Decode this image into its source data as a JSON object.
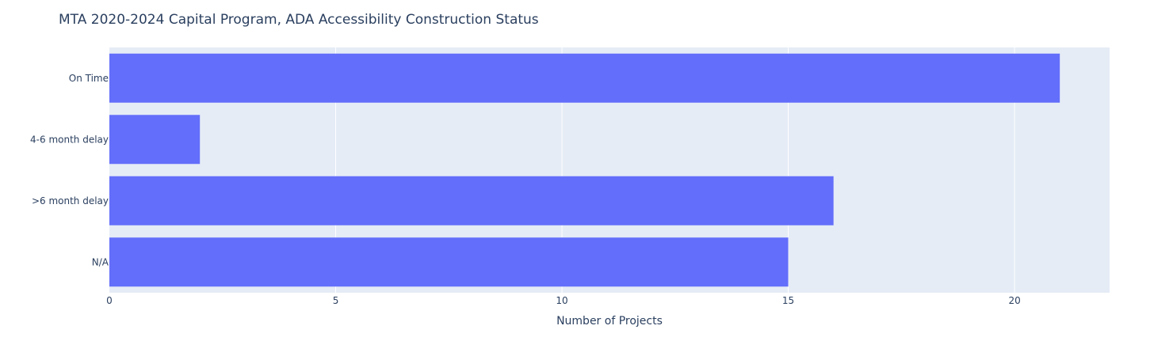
{
  "chart_data": {
    "type": "bar",
    "orientation": "horizontal",
    "title": "MTA 2020-2024 Capital Program, ADA Accessibility Construction Status",
    "xlabel": "Number of Projects",
    "ylabel": "",
    "categories": [
      "On Time",
      "4-6 month delay",
      ">6 month delay",
      "N/A"
    ],
    "values": [
      21,
      2,
      16,
      15
    ],
    "xlim": [
      0,
      22.1
    ],
    "xticks": [
      0,
      5,
      10,
      15,
      20
    ],
    "grid": true,
    "legend": "none",
    "colors": {
      "bar": "#636efa",
      "plot_background": "#e5ecf6",
      "grid": "#ffffff",
      "text": "#2a3f5f"
    }
  }
}
